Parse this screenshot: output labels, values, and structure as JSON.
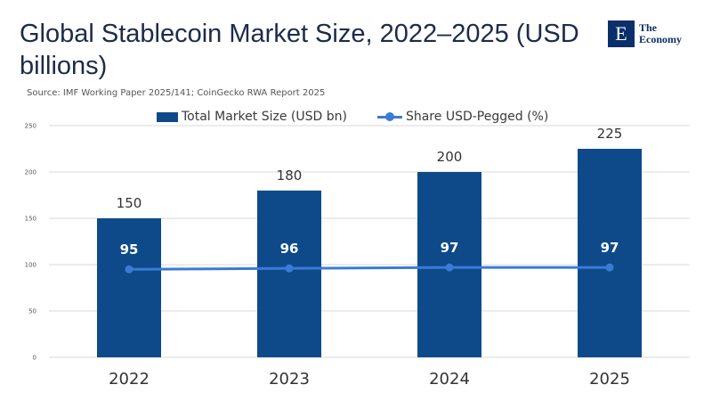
{
  "title": "Global Stablecoin Market Size, 2022–2025 (USD billions)",
  "source": "Source:  IMF Working Paper 2025/141; CoinGecko RWA Report 2025",
  "logo": {
    "mark": "E",
    "line1": "The",
    "line2": "Economy"
  },
  "colors": {
    "bar": "#0e4a8a",
    "line": "#3a7bd5",
    "grid": "#d9d9d9",
    "title": "#1c2b4a"
  },
  "chart_data": {
    "type": "bar",
    "categories": [
      "2022",
      "2023",
      "2024",
      "2025"
    ],
    "series": [
      {
        "name": "Total Market Size (USD bn)",
        "kind": "bar",
        "values": [
          150,
          180,
          200,
          225
        ]
      },
      {
        "name": "Share USD-Pegged (%)",
        "kind": "line",
        "values": [
          95,
          96,
          97,
          97
        ]
      }
    ],
    "yticks": [
      0,
      50,
      100,
      150,
      200,
      250
    ],
    "ylim": [
      0,
      250
    ],
    "grid": true,
    "legend_position": "top"
  }
}
